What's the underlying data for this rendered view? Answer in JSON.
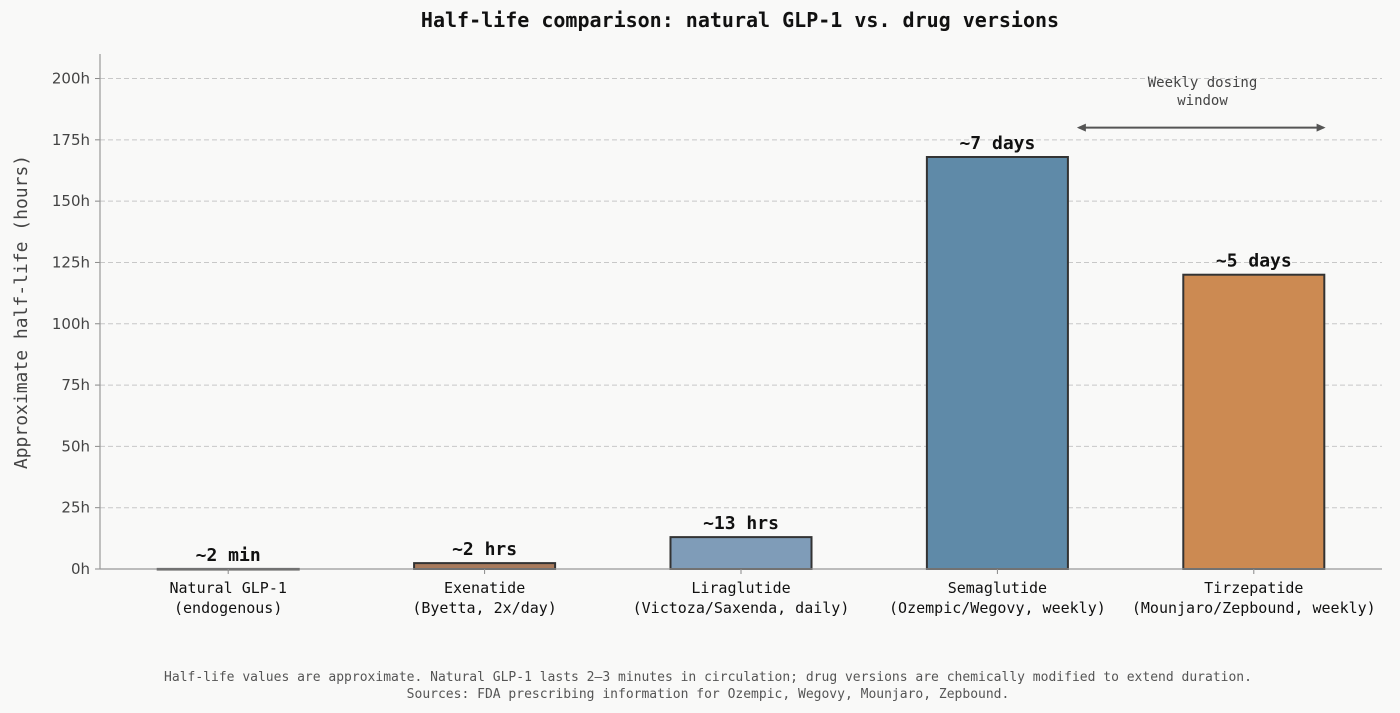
{
  "chart_data": {
    "type": "bar",
    "title": "Half-life comparison: natural GLP-1 vs. drug versions",
    "xlabel": "",
    "ylabel": "Approximate half-life (hours)",
    "ylim": [
      0,
      210
    ],
    "yticks": [
      0,
      25,
      50,
      75,
      100,
      125,
      150,
      175,
      200
    ],
    "ytick_labels": [
      "0h",
      "25h",
      "50h",
      "75h",
      "100h",
      "125h",
      "150h",
      "175h",
      "200h"
    ],
    "grid": "y-dashed",
    "categories": [
      [
        "Natural GLP-1",
        "(endogenous)"
      ],
      [
        "Exenatide",
        "(Byetta, 2x/day)"
      ],
      [
        "Liraglutide",
        "(Victoza/Saxenda, daily)"
      ],
      [
        "Semaglutide",
        "(Ozempic/Wegovy, weekly)"
      ],
      [
        "Tirzepatide",
        "(Mounjaro/Zepbound, weekly)"
      ]
    ],
    "values": [
      0.033,
      2.4,
      13,
      168,
      120
    ],
    "data_labels": [
      "~2 min",
      "~2 hrs",
      "~13 hrs",
      "~7 days",
      "~5 days"
    ],
    "colors": [
      "#555555",
      "#a87a5c",
      "#7f9cb8",
      "#5f8aa8",
      "#cc8a52"
    ],
    "annotation": {
      "lines": [
        "Weekly dosing",
        "window"
      ],
      "arrow_x": [
        3.31,
        4.28
      ],
      "arrow_y": 180,
      "text_x": 3.8,
      "text_y": 195
    },
    "footnote": [
      "Half-life values are approximate. Natural GLP-1 lasts 2–3 minutes in circulation; drug versions are chemically modified to extend duration.",
      "Sources: FDA prescribing information for Ozempic, Wegovy, Mounjaro, Zepbound."
    ]
  }
}
